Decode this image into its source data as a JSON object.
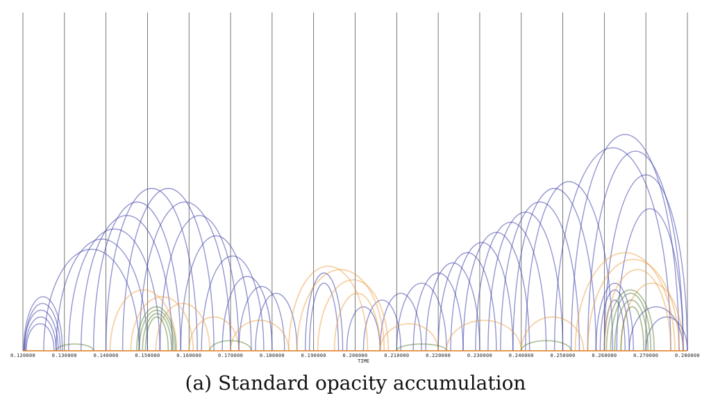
{
  "caption": "(a)  Standard opacity accumulation",
  "chart_data": {
    "type": "arc",
    "xlabel": "TIME",
    "xlim": [
      0.12,
      0.28
    ],
    "x_ticks": [
      0.12,
      0.13,
      0.14,
      0.15,
      0.16,
      0.17,
      0.18,
      0.19,
      0.2,
      0.21,
      0.22,
      0.23,
      0.24,
      0.25,
      0.26,
      0.27,
      0.28
    ],
    "x_tick_labels": [
      "0.120000",
      "0.130000",
      "0.140000",
      "0.150000",
      "0.160000",
      "0.170000",
      "0.180000",
      "0.190000",
      "0.200000",
      "0.210000",
      "0.220000",
      "0.230000",
      "0.240000",
      "0.250000",
      "0.260000",
      "0.270000",
      "0.280000"
    ],
    "grid": "vertical",
    "colors": {
      "blue": "#3a3ea8",
      "orange": "#e89a3a",
      "green": "#4f7a2a",
      "gridline": "#555555",
      "baseline": "#e07a1a"
    },
    "series": [
      {
        "color_key": "blue",
        "arcs": [
          {
            "x0": 0.1202,
            "x1": 0.1295,
            "h": 0.16
          },
          {
            "x0": 0.1204,
            "x1": 0.129,
            "h": 0.14
          },
          {
            "x0": 0.1203,
            "x1": 0.1285,
            "h": 0.12
          },
          {
            "x0": 0.1206,
            "x1": 0.128,
            "h": 0.1
          },
          {
            "x0": 0.1208,
            "x1": 0.1275,
            "h": 0.08
          },
          {
            "x0": 0.125,
            "x1": 0.148,
            "h": 0.3
          },
          {
            "x0": 0.128,
            "x1": 0.15,
            "h": 0.33
          },
          {
            "x0": 0.131,
            "x1": 0.153,
            "h": 0.36
          },
          {
            "x0": 0.134,
            "x1": 0.156,
            "h": 0.4
          },
          {
            "x0": 0.137,
            "x1": 0.158,
            "h": 0.44
          },
          {
            "x0": 0.14,
            "x1": 0.162,
            "h": 0.48
          },
          {
            "x0": 0.144,
            "x1": 0.166,
            "h": 0.48
          },
          {
            "x0": 0.148,
            "x1": 0.17,
            "h": 0.44
          },
          {
            "x0": 0.153,
            "x1": 0.172,
            "h": 0.4
          },
          {
            "x0": 0.158,
            "x1": 0.175,
            "h": 0.34
          },
          {
            "x0": 0.163,
            "x1": 0.178,
            "h": 0.28
          },
          {
            "x0": 0.168,
            "x1": 0.18,
            "h": 0.22
          },
          {
            "x0": 0.172,
            "x1": 0.183,
            "h": 0.19
          },
          {
            "x0": 0.176,
            "x1": 0.186,
            "h": 0.17
          },
          {
            "x0": 0.188,
            "x1": 0.197,
            "h": 0.23
          },
          {
            "x0": 0.189,
            "x1": 0.196,
            "h": 0.2
          },
          {
            "x0": 0.198,
            "x1": 0.206,
            "h": 0.13
          },
          {
            "x0": 0.202,
            "x1": 0.211,
            "h": 0.15
          },
          {
            "x0": 0.206,
            "x1": 0.216,
            "h": 0.17
          },
          {
            "x0": 0.21,
            "x1": 0.222,
            "h": 0.2
          },
          {
            "x0": 0.214,
            "x1": 0.226,
            "h": 0.23
          },
          {
            "x0": 0.217,
            "x1": 0.23,
            "h": 0.26
          },
          {
            "x0": 0.22,
            "x1": 0.234,
            "h": 0.29
          },
          {
            "x0": 0.223,
            "x1": 0.238,
            "h": 0.32
          },
          {
            "x0": 0.226,
            "x1": 0.242,
            "h": 0.35
          },
          {
            "x0": 0.229,
            "x1": 0.246,
            "h": 0.38
          },
          {
            "x0": 0.232,
            "x1": 0.25,
            "h": 0.41
          },
          {
            "x0": 0.235,
            "x1": 0.254,
            "h": 0.44
          },
          {
            "x0": 0.238,
            "x1": 0.258,
            "h": 0.48
          },
          {
            "x0": 0.241,
            "x1": 0.262,
            "h": 0.5
          },
          {
            "x0": 0.248,
            "x1": 0.276,
            "h": 0.6
          },
          {
            "x0": 0.252,
            "x1": 0.278,
            "h": 0.64
          },
          {
            "x0": 0.256,
            "x1": 0.279,
            "h": 0.59
          },
          {
            "x0": 0.26,
            "x1": 0.28,
            "h": 0.52
          },
          {
            "x0": 0.263,
            "x1": 0.279,
            "h": 0.42
          },
          {
            "x0": 0.258,
            "x1": 0.267,
            "h": 0.2
          },
          {
            "x0": 0.259,
            "x1": 0.266,
            "h": 0.18
          },
          {
            "x0": 0.26,
            "x1": 0.265,
            "h": 0.15
          },
          {
            "x0": 0.266,
            "x1": 0.279,
            "h": 0.13
          },
          {
            "x0": 0.27,
            "x1": 0.28,
            "h": 0.1
          }
        ]
      },
      {
        "color_key": "orange",
        "arcs": [
          {
            "x0": 0.141,
            "x1": 0.157,
            "h": 0.18
          },
          {
            "x0": 0.146,
            "x1": 0.161,
            "h": 0.16
          },
          {
            "x0": 0.152,
            "x1": 0.165,
            "h": 0.14
          },
          {
            "x0": 0.16,
            "x1": 0.172,
            "h": 0.1
          },
          {
            "x0": 0.17,
            "x1": 0.184,
            "h": 0.09
          },
          {
            "x0": 0.184,
            "x1": 0.203,
            "h": 0.25
          },
          {
            "x0": 0.186,
            "x1": 0.207,
            "h": 0.24
          },
          {
            "x0": 0.191,
            "x1": 0.208,
            "h": 0.21
          },
          {
            "x0": 0.195,
            "x1": 0.206,
            "h": 0.17
          },
          {
            "x0": 0.206,
            "x1": 0.22,
            "h": 0.08
          },
          {
            "x0": 0.222,
            "x1": 0.24,
            "h": 0.09
          },
          {
            "x0": 0.24,
            "x1": 0.255,
            "h": 0.1
          },
          {
            "x0": 0.253,
            "x1": 0.277,
            "h": 0.29
          },
          {
            "x0": 0.256,
            "x1": 0.278,
            "h": 0.27
          },
          {
            "x0": 0.26,
            "x1": 0.276,
            "h": 0.24
          },
          {
            "x0": 0.264,
            "x1": 0.279,
            "h": 0.2
          }
        ]
      },
      {
        "color_key": "green",
        "arcs": [
          {
            "x0": 0.1474,
            "x1": 0.1568,
            "h": 0.13
          },
          {
            "x0": 0.148,
            "x1": 0.1564,
            "h": 0.12
          },
          {
            "x0": 0.1488,
            "x1": 0.1558,
            "h": 0.11
          },
          {
            "x0": 0.1495,
            "x1": 0.155,
            "h": 0.1
          },
          {
            "x0": 0.2605,
            "x1": 0.272,
            "h": 0.18
          },
          {
            "x0": 0.2615,
            "x1": 0.2712,
            "h": 0.17
          },
          {
            "x0": 0.2625,
            "x1": 0.2705,
            "h": 0.15
          },
          {
            "x0": 0.264,
            "x1": 0.2695,
            "h": 0.13
          },
          {
            "x0": 0.128,
            "x1": 0.137,
            "h": 0.02
          },
          {
            "x0": 0.165,
            "x1": 0.175,
            "h": 0.03
          },
          {
            "x0": 0.21,
            "x1": 0.222,
            "h": 0.02
          },
          {
            "x0": 0.24,
            "x1": 0.252,
            "h": 0.03
          }
        ]
      }
    ]
  }
}
